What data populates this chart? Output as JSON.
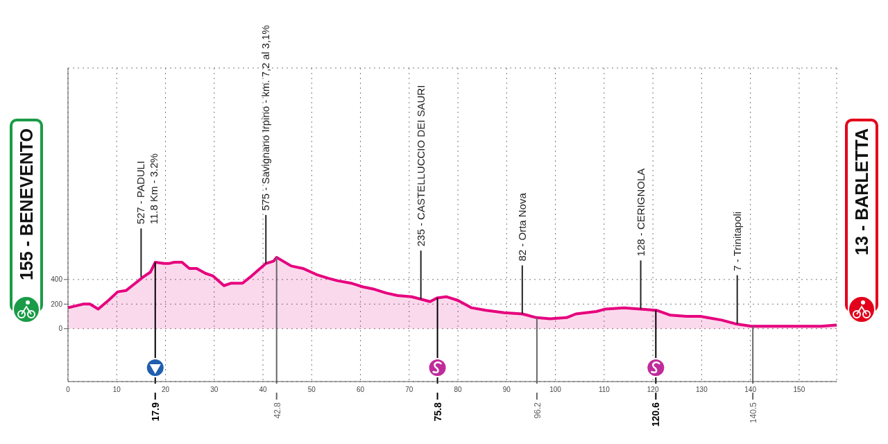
{
  "chart_data": {
    "type": "area",
    "x": [
      0,
      3.1,
      4.5,
      6.2,
      8.3,
      10.2,
      11.9,
      13.5,
      15.4,
      16.9,
      17.9,
      19.7,
      20.7,
      21.8,
      23.4,
      24.9,
      26.4,
      28.2,
      29.7,
      32,
      33.5,
      35.8,
      37.7,
      40.6,
      42.2,
      42.8,
      45.8,
      48.2,
      51,
      53.4,
      55.3,
      58.1,
      60.5,
      62.9,
      65.3,
      67.6,
      70.5,
      72.4,
      74.3,
      75.7,
      77.6,
      80,
      82.8,
      85.7,
      89.5,
      93.2,
      96.1,
      98.9,
      102.3,
      104.2,
      108.4,
      110.3,
      114.1,
      117.4,
      120.7,
      123.6,
      126.9,
      129.8,
      134.1,
      136.9,
      140.2,
      145.9,
      150.7,
      154.5,
      157.7
    ],
    "series": [
      {
        "color": "#e6007e",
        "values": [
          170,
          200,
          200,
          160,
          230,
          300,
          310,
          360,
          420,
          460,
          540,
          530,
          530,
          540,
          540,
          490,
          490,
          450,
          430,
          350,
          370,
          370,
          430,
          530,
          550,
          580,
          510,
          490,
          440,
          410,
          390,
          370,
          340,
          320,
          290,
          270,
          260,
          240,
          220,
          250,
          260,
          230,
          170,
          150,
          130,
          120,
          90,
          80,
          90,
          120,
          140,
          160,
          170,
          160,
          150,
          110,
          100,
          100,
          70,
          40,
          20,
          20,
          20,
          20,
          30
        ]
      }
    ],
    "xlim": [
      0,
      157.7
    ],
    "xticks": [
      0,
      10,
      20,
      30,
      40,
      50,
      60,
      70,
      80,
      90,
      100,
      110,
      120,
      130,
      140,
      150
    ],
    "ylim": [
      -430,
      2120
    ],
    "yticks": [
      0,
      200,
      400
    ],
    "grid": true,
    "line_style": "solid",
    "marker": "none",
    "legend": false,
    "ref_lines": [
      {
        "axis": "x",
        "value": 17.9,
        "label": "17.9",
        "color": "#000000"
      },
      {
        "axis": "x",
        "value": 42.8,
        "label": "42.8",
        "color": "#666666"
      },
      {
        "axis": "x",
        "value": 75.8,
        "label": "75.8",
        "color": "#000000"
      },
      {
        "axis": "x",
        "value": 96.2,
        "label": "96.2",
        "color": "#666666"
      },
      {
        "axis": "x",
        "value": 120.6,
        "label": "120.6",
        "color": "#000000"
      },
      {
        "axis": "x",
        "value": 140.5,
        "label": "140.5",
        "color": "#666666"
      }
    ],
    "annotations": [
      "155 - BENEVENTO",
      {
        "text": "527 - PADULI\n11.8 Km - 3.2%",
        "x": 15,
        "y": 420
      },
      {
        "text": "575 - Savignano Irpino - km. 7,2 al 3,1%",
        "x": 40.6,
        "y": 530
      },
      {
        "text": "235 - CASTELLUCCIO DEI SAURI",
        "x": 72.4,
        "y": 240
      },
      {
        "text": "82 - Orta Nova",
        "x": 93.2,
        "y": 120
      },
      {
        "text": "128 - CERIGNOLA",
        "x": 117.5,
        "y": 160
      },
      {
        "text": "7 - Trinitapoli",
        "x": 137.3,
        "y": 40
      },
      "13 - BARLETTA"
    ]
  }
}
